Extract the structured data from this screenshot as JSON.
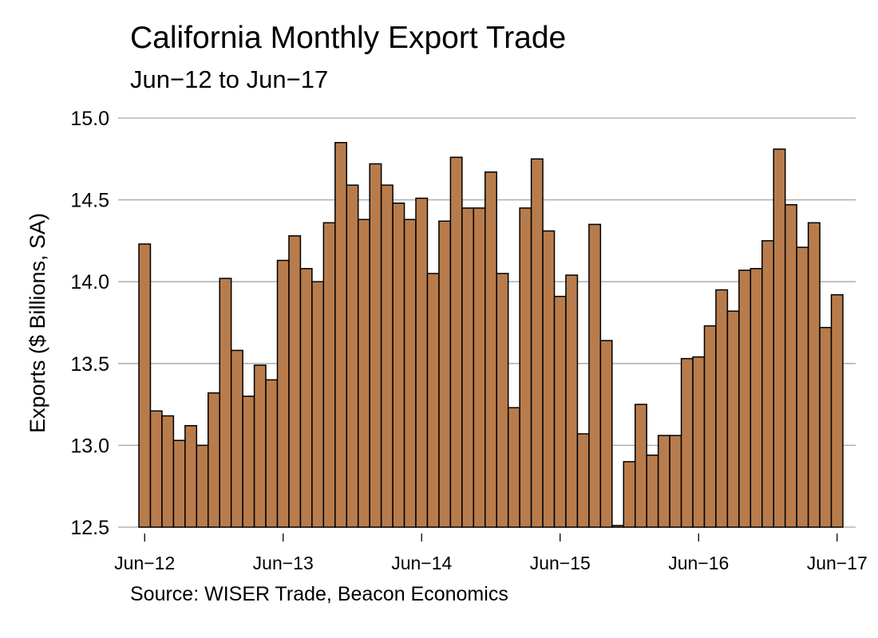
{
  "chart_data": {
    "type": "bar",
    "title": "California Monthly Export Trade",
    "subtitle": "Jun−12 to Jun−17",
    "ylabel": "Exports ($ Billions, SA)",
    "xlabel": "",
    "source": "Source: WISER Trade, Beacon Economics",
    "ylim": [
      12.5,
      15.0
    ],
    "yticks": [
      "12.5",
      "13.0",
      "13.5",
      "14.0",
      "14.5",
      "15.0"
    ],
    "ytick_values": [
      12.5,
      13.0,
      13.5,
      14.0,
      14.5,
      15.0
    ],
    "xtick_labels": [
      "Jun−12",
      "Jun−13",
      "Jun−14",
      "Jun−15",
      "Jun−16",
      "Jun−17"
    ],
    "xtick_month_index": [
      0,
      12,
      24,
      36,
      48,
      60
    ],
    "grid": "horizontal",
    "bar_color": "#b87c4c",
    "bar_edge_color": "#000000",
    "grid_color": "#a6a6a6",
    "values": [
      14.23,
      13.21,
      13.18,
      13.03,
      13.12,
      13.0,
      13.32,
      14.02,
      13.58,
      13.3,
      13.49,
      13.4,
      14.13,
      14.28,
      14.08,
      14.0,
      14.36,
      14.85,
      14.59,
      14.38,
      14.72,
      14.59,
      14.48,
      14.38,
      14.51,
      14.05,
      14.37,
      14.76,
      14.45,
      14.45,
      14.67,
      14.05,
      13.23,
      14.45,
      14.75,
      14.31,
      13.91,
      14.04,
      13.07,
      14.35,
      13.64,
      12.51,
      12.9,
      13.25,
      12.94,
      13.06,
      13.06,
      13.53,
      13.54,
      13.73,
      13.95,
      13.82,
      14.07,
      14.08,
      14.25,
      14.81,
      14.47,
      14.21,
      14.36,
      13.72,
      13.92
    ]
  }
}
